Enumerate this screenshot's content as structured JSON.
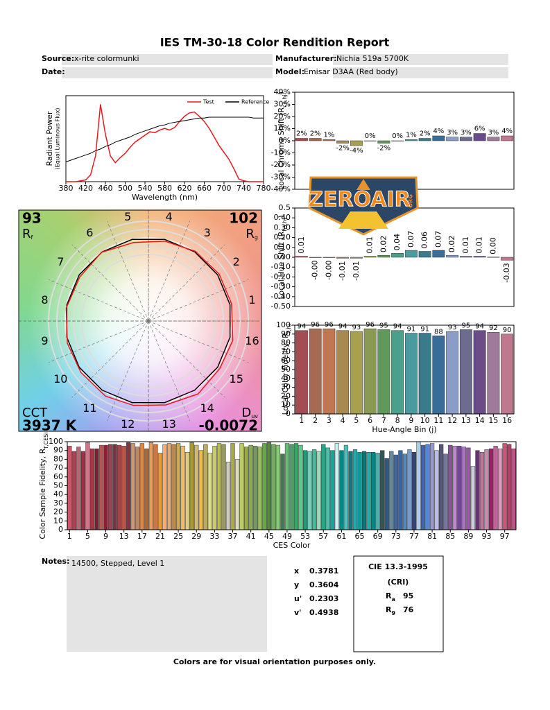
{
  "header": {
    "title": "IES TM-30-18 Color Rendition Report",
    "source": {
      "label": "Source:",
      "value": "x-rite colormunki"
    },
    "manufacturer": {
      "label": "Manufacturer:",
      "value": "Nichia 519a 5700K"
    },
    "date": {
      "label": "Date:"
    },
    "model": {
      "label": "Model:",
      "value": "Emisar D3AA (Red body)"
    }
  },
  "chart_data": [
    {
      "type": "line",
      "xlabel": "Wavelength (nm)",
      "ylabel": "Radiant Power",
      "ylabel2": "(Equal Luminous Flux)",
      "legend": "upper right",
      "x": [
        380,
        390,
        400,
        410,
        420,
        430,
        440,
        450,
        460,
        470,
        480,
        490,
        500,
        510,
        520,
        530,
        540,
        550,
        560,
        570,
        580,
        590,
        600,
        610,
        620,
        630,
        640,
        650,
        660,
        670,
        680,
        690,
        700,
        710,
        720,
        730,
        740,
        750,
        760,
        770,
        780
      ],
      "series": [
        {
          "name": "Test",
          "color": "#e8181c",
          "values": [
            0,
            0,
            0,
            0.01,
            0.02,
            0.08,
            0.3,
            0.9,
            0.55,
            0.3,
            0.22,
            0.28,
            0.33,
            0.4,
            0.46,
            0.5,
            0.54,
            0.58,
            0.57,
            0.6,
            0.62,
            0.6,
            0.63,
            0.7,
            0.76,
            0.8,
            0.81,
            0.76,
            0.7,
            0.62,
            0.52,
            0.42,
            0.34,
            0.26,
            0.15,
            0.03,
            0.01,
            0,
            0,
            0,
            0
          ]
        },
        {
          "name": "Reference",
          "color": "#000000",
          "values": [
            0.23,
            0.25,
            0.27,
            0.29,
            0.31,
            0.33,
            0.36,
            0.38,
            0.41,
            0.43,
            0.46,
            0.48,
            0.5,
            0.52,
            0.55,
            0.57,
            0.59,
            0.61,
            0.63,
            0.65,
            0.66,
            0.68,
            0.69,
            0.7,
            0.71,
            0.72,
            0.73,
            0.74,
            0.74,
            0.75,
            0.75,
            0.75,
            0.75,
            0.75,
            0.75,
            0.75,
            0.75,
            0.75,
            0.74,
            0.74,
            0.74
          ]
        }
      ],
      "xlim": [
        380,
        780
      ],
      "xticks": [
        380,
        420,
        460,
        500,
        540,
        580,
        620,
        660,
        700,
        740,
        780
      ],
      "ylim": [
        0,
        1
      ]
    },
    {
      "type": "bar",
      "ylabel": [
        "Local Chroma Shift (R",
        "cs,hj",
        ")"
      ],
      "categories": [
        1,
        2,
        3,
        4,
        5,
        6,
        7,
        8,
        9,
        10,
        11,
        12,
        13,
        14,
        15,
        16
      ],
      "values": [
        2,
        2,
        1,
        -2,
        -4,
        0,
        -2,
        0,
        1,
        2,
        4,
        3,
        3,
        6,
        3,
        4
      ],
      "value_labels": [
        "2%",
        "2%",
        "1%",
        "-2%",
        "-4%",
        "0%",
        "-2%",
        "0%",
        "1%",
        "2%",
        "4%",
        "3%",
        "3%",
        "6%",
        "3%",
        "4%"
      ],
      "colors": [
        "#a34c52",
        "#a56b52",
        "#c07850",
        "#a88a4f",
        "#a8a050",
        "#8a9a52",
        "#5f9a5a",
        "#4aa08a",
        "#4a9aa0",
        "#3a7a8a",
        "#3a6c98",
        "#8c9cc8",
        "#6c6c90",
        "#6a4c8a",
        "#a07a9a",
        "#c0788e"
      ],
      "ylim": [
        -40,
        40
      ],
      "yticks": [
        {
          "value": -40,
          "label": "-40%"
        },
        {
          "value": -30,
          "label": "-30%"
        },
        {
          "value": -20,
          "label": "-20%"
        },
        {
          "value": -10,
          "label": "-10%"
        },
        {
          "value": 0,
          "label": "0%"
        },
        {
          "value": 10,
          "label": "10%"
        },
        {
          "value": 20,
          "label": "20%"
        },
        {
          "value": 30,
          "label": "30%"
        },
        {
          "value": 40,
          "label": "40%"
        }
      ],
      "label_rotation": 0
    },
    {
      "type": "bar",
      "ylabel": [
        "Local Hue Shift (R",
        "hs,hj",
        ")"
      ],
      "categories": [
        1,
        2,
        3,
        4,
        5,
        6,
        7,
        8,
        9,
        10,
        11,
        12,
        13,
        14,
        15,
        16
      ],
      "values": [
        0.01,
        -0.002,
        -0.003,
        -0.01,
        -0.01,
        0.01,
        0.02,
        0.04,
        0.07,
        0.06,
        0.07,
        0.02,
        0.01,
        0.01,
        0.002,
        -0.03
      ],
      "value_labels": [
        "0.01",
        "-0.00",
        "-0.00",
        "-0.01",
        "-0.01",
        "0.01",
        "0.02",
        "0.04",
        "0.07",
        "0.06",
        "0.07",
        "0.02",
        "0.01",
        "0.01",
        "0.00",
        "-0.03"
      ],
      "colors": [
        "#a34c52",
        "#a56b52",
        "#c07850",
        "#a88a4f",
        "#a8a050",
        "#8a9a52",
        "#5f9a5a",
        "#4aa08a",
        "#4a9aa0",
        "#3a7a8a",
        "#3a6c98",
        "#8c9cc8",
        "#6c6c90",
        "#6a4c8a",
        "#a07a9a",
        "#c0788e"
      ],
      "ylim": [
        -0.5,
        0.5
      ],
      "yticks": [
        {
          "value": -0.5,
          "label": "-0.50"
        },
        {
          "value": -0.4,
          "label": "-0.40"
        },
        {
          "value": -0.3,
          "label": "-0.30"
        },
        {
          "value": -0.2,
          "label": "-0.20"
        },
        {
          "value": -0.1,
          "label": "-0.10"
        },
        {
          "value": 0,
          "label": "0.00"
        },
        {
          "value": 0.1,
          "label": "0.10"
        },
        {
          "value": 0.2,
          "label": "0.20"
        },
        {
          "value": 0.3,
          "label": "0.30"
        },
        {
          "value": 0.4,
          "label": "0.40"
        },
        0.5
      ],
      "label_rotation": -90
    },
    {
      "type": "bar",
      "ylabel": [
        "Local Color Fidelity, R",
        "f,hj",
        ""
      ],
      "xlabel": "Hue-Angle Bin (j)",
      "categories": [
        1,
        2,
        3,
        4,
        5,
        6,
        7,
        8,
        9,
        10,
        11,
        12,
        13,
        14,
        15,
        16
      ],
      "values": [
        94,
        96,
        96,
        94,
        93,
        96,
        95,
        94,
        91,
        91,
        88,
        93,
        95,
        94,
        92,
        90
      ],
      "data_labels": true,
      "colors": [
        "#a34c52",
        "#a56b52",
        "#c07850",
        "#a88a4f",
        "#a8a050",
        "#8a9a52",
        "#5f9a5a",
        "#4aa08a",
        "#4a9aa0",
        "#3a7a8a",
        "#3a6c98",
        "#8c9cc8",
        "#6c6c90",
        "#6a4c8a",
        "#a07a9a",
        "#c0788e"
      ],
      "ylim": [
        0,
        100
      ],
      "yticks": [
        0,
        10,
        20,
        30,
        40,
        50,
        60,
        70,
        80,
        90,
        100
      ],
      "show_xticks": true
    },
    {
      "type": "bar",
      "ylabel": [
        "Color Sample Fidelity, R",
        "f,CESi",
        ""
      ],
      "xlabel": "CES Color",
      "categories": [
        "1",
        null,
        null,
        null,
        "5",
        null,
        null,
        null,
        "9",
        null,
        null,
        null,
        "13",
        null,
        null,
        null,
        "17",
        null,
        null,
        null,
        "21",
        null,
        null,
        null,
        "25",
        null,
        null,
        null,
        "29",
        null,
        null,
        null,
        "33",
        null,
        null,
        null,
        "37",
        null,
        null,
        null,
        "41",
        null,
        null,
        null,
        "45",
        null,
        null,
        null,
        "49",
        null,
        null,
        null,
        "53",
        null,
        null,
        null,
        "57",
        null,
        null,
        null,
        "61",
        null,
        null,
        null,
        "65",
        null,
        null,
        null,
        "69",
        null,
        null,
        null,
        "73",
        null,
        null,
        null,
        "77",
        null,
        null,
        null,
        "81",
        null,
        null,
        null,
        "85",
        null,
        null,
        null,
        "89",
        null,
        null,
        null,
        "93",
        null,
        null,
        null,
        "97",
        null,
        null
      ],
      "values": [
        95,
        89,
        94,
        89,
        99,
        92,
        92,
        96,
        96,
        97,
        97,
        96,
        95,
        99,
        98,
        94,
        98,
        92,
        99,
        97,
        87,
        97,
        98,
        97,
        98,
        95,
        88,
        99,
        96,
        90,
        97,
        87,
        95,
        98,
        97,
        77,
        98,
        80,
        98,
        94,
        96,
        95,
        94,
        98,
        99,
        97,
        96,
        86,
        98,
        97,
        98,
        96,
        90,
        89,
        91,
        89,
        97,
        93,
        90,
        98,
        90,
        96,
        89,
        91,
        88,
        89,
        88,
        88,
        87,
        90,
        81,
        89,
        85,
        90,
        86,
        91,
        88,
        100,
        96,
        97,
        98,
        90,
        97,
        86,
        96,
        95,
        95,
        94,
        93,
        72,
        90,
        88,
        91,
        92,
        95,
        92,
        98,
        97,
        92
      ],
      "colors": [
        "#c56",
        "#a45",
        "#b67",
        "#934",
        "#c78",
        "#a34",
        "#723",
        "#b55",
        "#823",
        "#945",
        "#734",
        "#a44",
        "#b54",
        "#834",
        "#c97",
        "#b86",
        "#d84",
        "#a63",
        "#e95",
        "#c74",
        "#e93",
        "#fa6",
        "#da7",
        "#b85",
        "#ca5",
        "#eb6",
        "#dc8",
        "#a93",
        "#cb7",
        "#eb4",
        "#ba6",
        "#dd8",
        "#cc6",
        "#bb5",
        "#996",
        "#ccb",
        "#aa4",
        "#ddb",
        "#bc6",
        "#9a4",
        "#8a5",
        "#796",
        "#9b6",
        "#6a4",
        "#584",
        "#7a6",
        "#8c7",
        "#475",
        "#6b7",
        "#596",
        "#3a6",
        "#5c8",
        "#297",
        "#7cb",
        "#4b9",
        "#9db",
        "#2a8",
        "#5ba",
        "#1a9",
        "#cee",
        "#088",
        "#5bb",
        "#177",
        "#2aa",
        "#199",
        "#077",
        "#2aa",
        "#088",
        "#5aa",
        "#355",
        "#358",
        "#689",
        "#469",
        "#36a",
        "#58b",
        "#79c",
        "#347",
        "#ace",
        "#46a",
        "#58c",
        "#99c",
        "#bbe",
        "#557",
        "#779",
        "#859",
        "#b8c",
        "#749",
        "#a7b",
        "#95a",
        "#ccd",
        "#637",
        "#b79",
        "#c8a",
        "#926",
        "#b69",
        "#d9b",
        "#c57",
        "#a46",
        "#b58"
      ],
      "ylim": [
        0,
        100
      ],
      "yticks": [
        0,
        10,
        20,
        30,
        40,
        50,
        60,
        70,
        80,
        90,
        100
      ],
      "show_xticks": true
    }
  ],
  "vector_graphic": {
    "rf": {
      "value": 93,
      "label": "R",
      "sub": "f"
    },
    "rg": {
      "value": 102,
      "label": "R",
      "sub": "g"
    },
    "cct": {
      "label": "CCT",
      "value": "3937 K"
    },
    "duv": {
      "label": "D",
      "sub": "uv",
      "value": -0.0072
    },
    "test_color": "#e8181c",
    "reference_color": "#000000"
  },
  "notes": {
    "label": "Notes:",
    "text": "14500, Stepped, Level 1"
  },
  "chromaticity": [
    {
      "label": "x",
      "value": 0.3781
    },
    {
      "label": "y",
      "value": 0.3604
    },
    {
      "label": "u'",
      "value": 0.2303
    },
    {
      "label": "v'",
      "value": 0.4938
    }
  ],
  "cri": {
    "title": "CIE 13.3-1995",
    "subtitle": "(CRI)",
    "ra": {
      "label": "R",
      "sub": "a",
      "value": 95
    },
    "r9": {
      "label": "R",
      "sub": "9",
      "value": 76
    }
  },
  "footer": "Colors are for visual orientation purposes only.",
  "watermark": {
    "text": "ZEROAIR",
    "suffix": "ORG"
  }
}
